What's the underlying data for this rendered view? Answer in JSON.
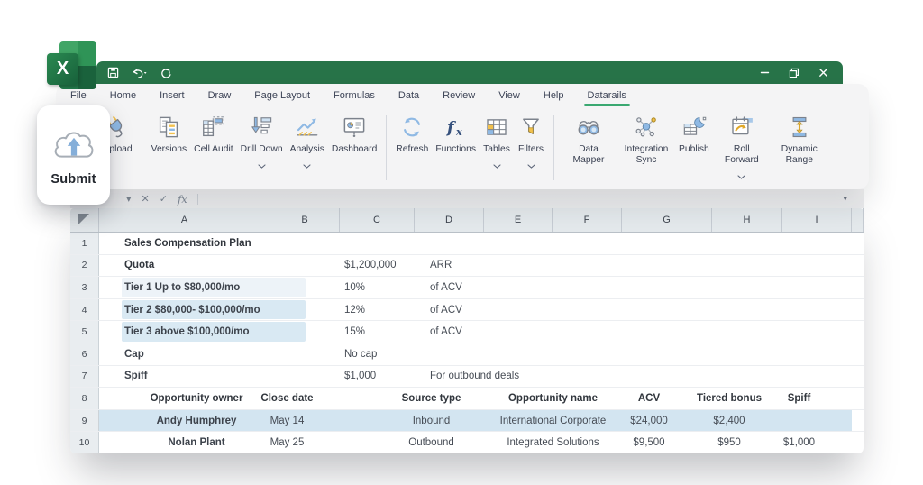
{
  "colors": {
    "titlebar_green": "#287449",
    "tab_underline_green": "#3aa871",
    "selected_row_blue": "#d3e5f1",
    "tier_band_light": "#edf3f8",
    "tier_band_mid": "#d9e9f3",
    "icon_accent_blue": "#8fb9e4",
    "icon_accent_yellow": "#f2c14e"
  },
  "titlebar": {
    "quick_access": [
      {
        "name": "save-icon"
      },
      {
        "name": "undo-icon"
      },
      {
        "name": "redo-icon"
      }
    ],
    "controls": [
      {
        "name": "minimize-icon"
      },
      {
        "name": "restore-icon"
      },
      {
        "name": "close-icon"
      }
    ]
  },
  "tabs": {
    "items": [
      {
        "label": "File"
      },
      {
        "label": "Home"
      },
      {
        "label": "Insert"
      },
      {
        "label": "Draw"
      },
      {
        "label": "Page Layout"
      },
      {
        "label": "Formulas"
      },
      {
        "label": "Data"
      },
      {
        "label": "Review"
      },
      {
        "label": "View"
      },
      {
        "label": "Help"
      },
      {
        "label": "Datarails",
        "active": true
      }
    ]
  },
  "submit_popup": {
    "label": "Submit",
    "icon": "cloud-upload-icon"
  },
  "ribbon": {
    "groups": [
      {
        "buttons": [
          {
            "label": "Upload",
            "icon": "plug-icon"
          }
        ]
      },
      {
        "buttons": [
          {
            "label": "Versions",
            "icon": "versions-icon"
          },
          {
            "label": "Cell Audit",
            "icon": "cell-audit-icon"
          },
          {
            "label": "Drill Down",
            "icon": "drill-down-icon",
            "chevron": true
          },
          {
            "label": "Analysis",
            "icon": "analysis-icon",
            "chevron": true
          },
          {
            "label": "Dashboard",
            "icon": "dashboard-icon"
          }
        ]
      },
      {
        "buttons": [
          {
            "label": "Refresh",
            "icon": "refresh-icon"
          },
          {
            "label": "Functions",
            "icon": "functions-icon"
          },
          {
            "label": "Tables",
            "icon": "tables-icon",
            "chevron": true
          },
          {
            "label": "Filters",
            "icon": "filter-icon",
            "chevron": true
          }
        ]
      },
      {
        "buttons": [
          {
            "label": "Data Mapper",
            "icon": "binoculars-icon"
          },
          {
            "label": "Integration Sync",
            "icon": "network-icon"
          },
          {
            "label": "Publish",
            "icon": "publish-icon"
          },
          {
            "label": "Roll Forward",
            "icon": "calendar-forward-icon",
            "chevron": true
          },
          {
            "label": "Dynamic Range",
            "icon": "dynamic-range-icon"
          }
        ]
      }
    ]
  },
  "formula_bar": {
    "icons": [
      {
        "name": "namebox-dropdown-icon",
        "glyph": "▾"
      },
      {
        "name": "cancel-icon",
        "glyph": "✕"
      },
      {
        "name": "enter-icon",
        "glyph": "✓"
      },
      {
        "name": "insert-function-icon",
        "glyph": "fx"
      }
    ],
    "collapse_glyph": "▾"
  },
  "sheet": {
    "columns": [
      "A",
      "B",
      "C",
      "D",
      "E",
      "F",
      "G",
      "H",
      "I"
    ],
    "rows": [
      {
        "n": "1",
        "cells": [
          {
            "col": "A",
            "text": "Sales Compensation Plan",
            "b": 2,
            "al": "l"
          }
        ]
      },
      {
        "n": "2",
        "cells": [
          {
            "col": "A",
            "text": "Quota",
            "b": 2,
            "al": "l"
          },
          {
            "col": "C",
            "text": "$1,200,000",
            "al": "l"
          },
          {
            "col": "D",
            "text": "ARR",
            "al": "l"
          }
        ]
      },
      {
        "n": "3",
        "band": "light",
        "cells": [
          {
            "col": "A",
            "text": "Tier 1 Up to $80,000/mo",
            "b": 1,
            "al": "l"
          },
          {
            "col": "C",
            "text": "10%",
            "al": "l"
          },
          {
            "col": "D",
            "text": "of ACV",
            "al": "l"
          }
        ]
      },
      {
        "n": "4",
        "band": "mid",
        "cells": [
          {
            "col": "A",
            "text": "Tier 2  $80,000- $100,000/mo",
            "b": 1,
            "al": "l"
          },
          {
            "col": "C",
            "text": "12%",
            "al": "l"
          },
          {
            "col": "D",
            "text": "of ACV",
            "al": "l"
          }
        ]
      },
      {
        "n": "5",
        "band": "mid",
        "cells": [
          {
            "col": "A",
            "text": "Tier 3 above $100,000/mo",
            "b": 1,
            "al": "l"
          },
          {
            "col": "C",
            "text": "15%",
            "al": "l"
          },
          {
            "col": "D",
            "text": "of ACV",
            "al": "l"
          }
        ]
      },
      {
        "n": "6",
        "cells": [
          {
            "col": "A",
            "text": "Cap",
            "b": 1,
            "al": "l"
          },
          {
            "col": "C",
            "text": "No cap",
            "al": "l"
          }
        ]
      },
      {
        "n": "7",
        "cells": [
          {
            "col": "A",
            "text": "Spiff",
            "b": 1,
            "al": "l"
          },
          {
            "col": "C",
            "text": "$1,000",
            "al": "l"
          },
          {
            "col": "D",
            "text": "For outbound deals",
            "al": "l",
            "span": 2
          }
        ]
      },
      {
        "n": "8",
        "cells": [
          {
            "col": "A",
            "text": "Opportunity owner",
            "b": 2,
            "al": "ca"
          },
          {
            "col": "B",
            "text": "Close date",
            "b": 2,
            "al": "cs"
          },
          {
            "col": "D",
            "text": "Source type",
            "b": 2,
            "al": "cs"
          },
          {
            "col": "E",
            "span": 2,
            "text": "Opportunity  name",
            "b": 2,
            "al": "c"
          },
          {
            "col": "G",
            "text": "ACV",
            "b": 2,
            "al": "cs"
          },
          {
            "col": "H",
            "text": "Tiered bonus",
            "b": 2,
            "al": "cs"
          },
          {
            "col": "I",
            "text": "Spiff",
            "b": 2,
            "al": "cs"
          }
        ]
      },
      {
        "n": "9",
        "sel": true,
        "cells": [
          {
            "col": "A",
            "text": "Andy Humphrey",
            "b": 1,
            "al": "ca"
          },
          {
            "col": "B",
            "text": "May 14",
            "al": "cs"
          },
          {
            "col": "D",
            "text": "Inbound",
            "al": "cs"
          },
          {
            "col": "E",
            "span": 2,
            "text": "International Corporate",
            "al": "c"
          },
          {
            "col": "G",
            "text": "$24,000",
            "al": "cs"
          },
          {
            "col": "H",
            "text": "$2,400",
            "al": "cs"
          }
        ]
      },
      {
        "n": "10",
        "cells": [
          {
            "col": "A",
            "text": "Nolan Plant",
            "b": 1,
            "al": "ca"
          },
          {
            "col": "B",
            "text": "May 25",
            "al": "cs"
          },
          {
            "col": "D",
            "text": "Outbound",
            "al": "cs"
          },
          {
            "col": "E",
            "span": 2,
            "text": "Integrated Solutions",
            "al": "c"
          },
          {
            "col": "G",
            "text": "$9,500",
            "al": "cs"
          },
          {
            "col": "H",
            "text": "$950",
            "al": "cs"
          },
          {
            "col": "I",
            "text": "$1,000",
            "al": "cs"
          }
        ]
      }
    ]
  }
}
